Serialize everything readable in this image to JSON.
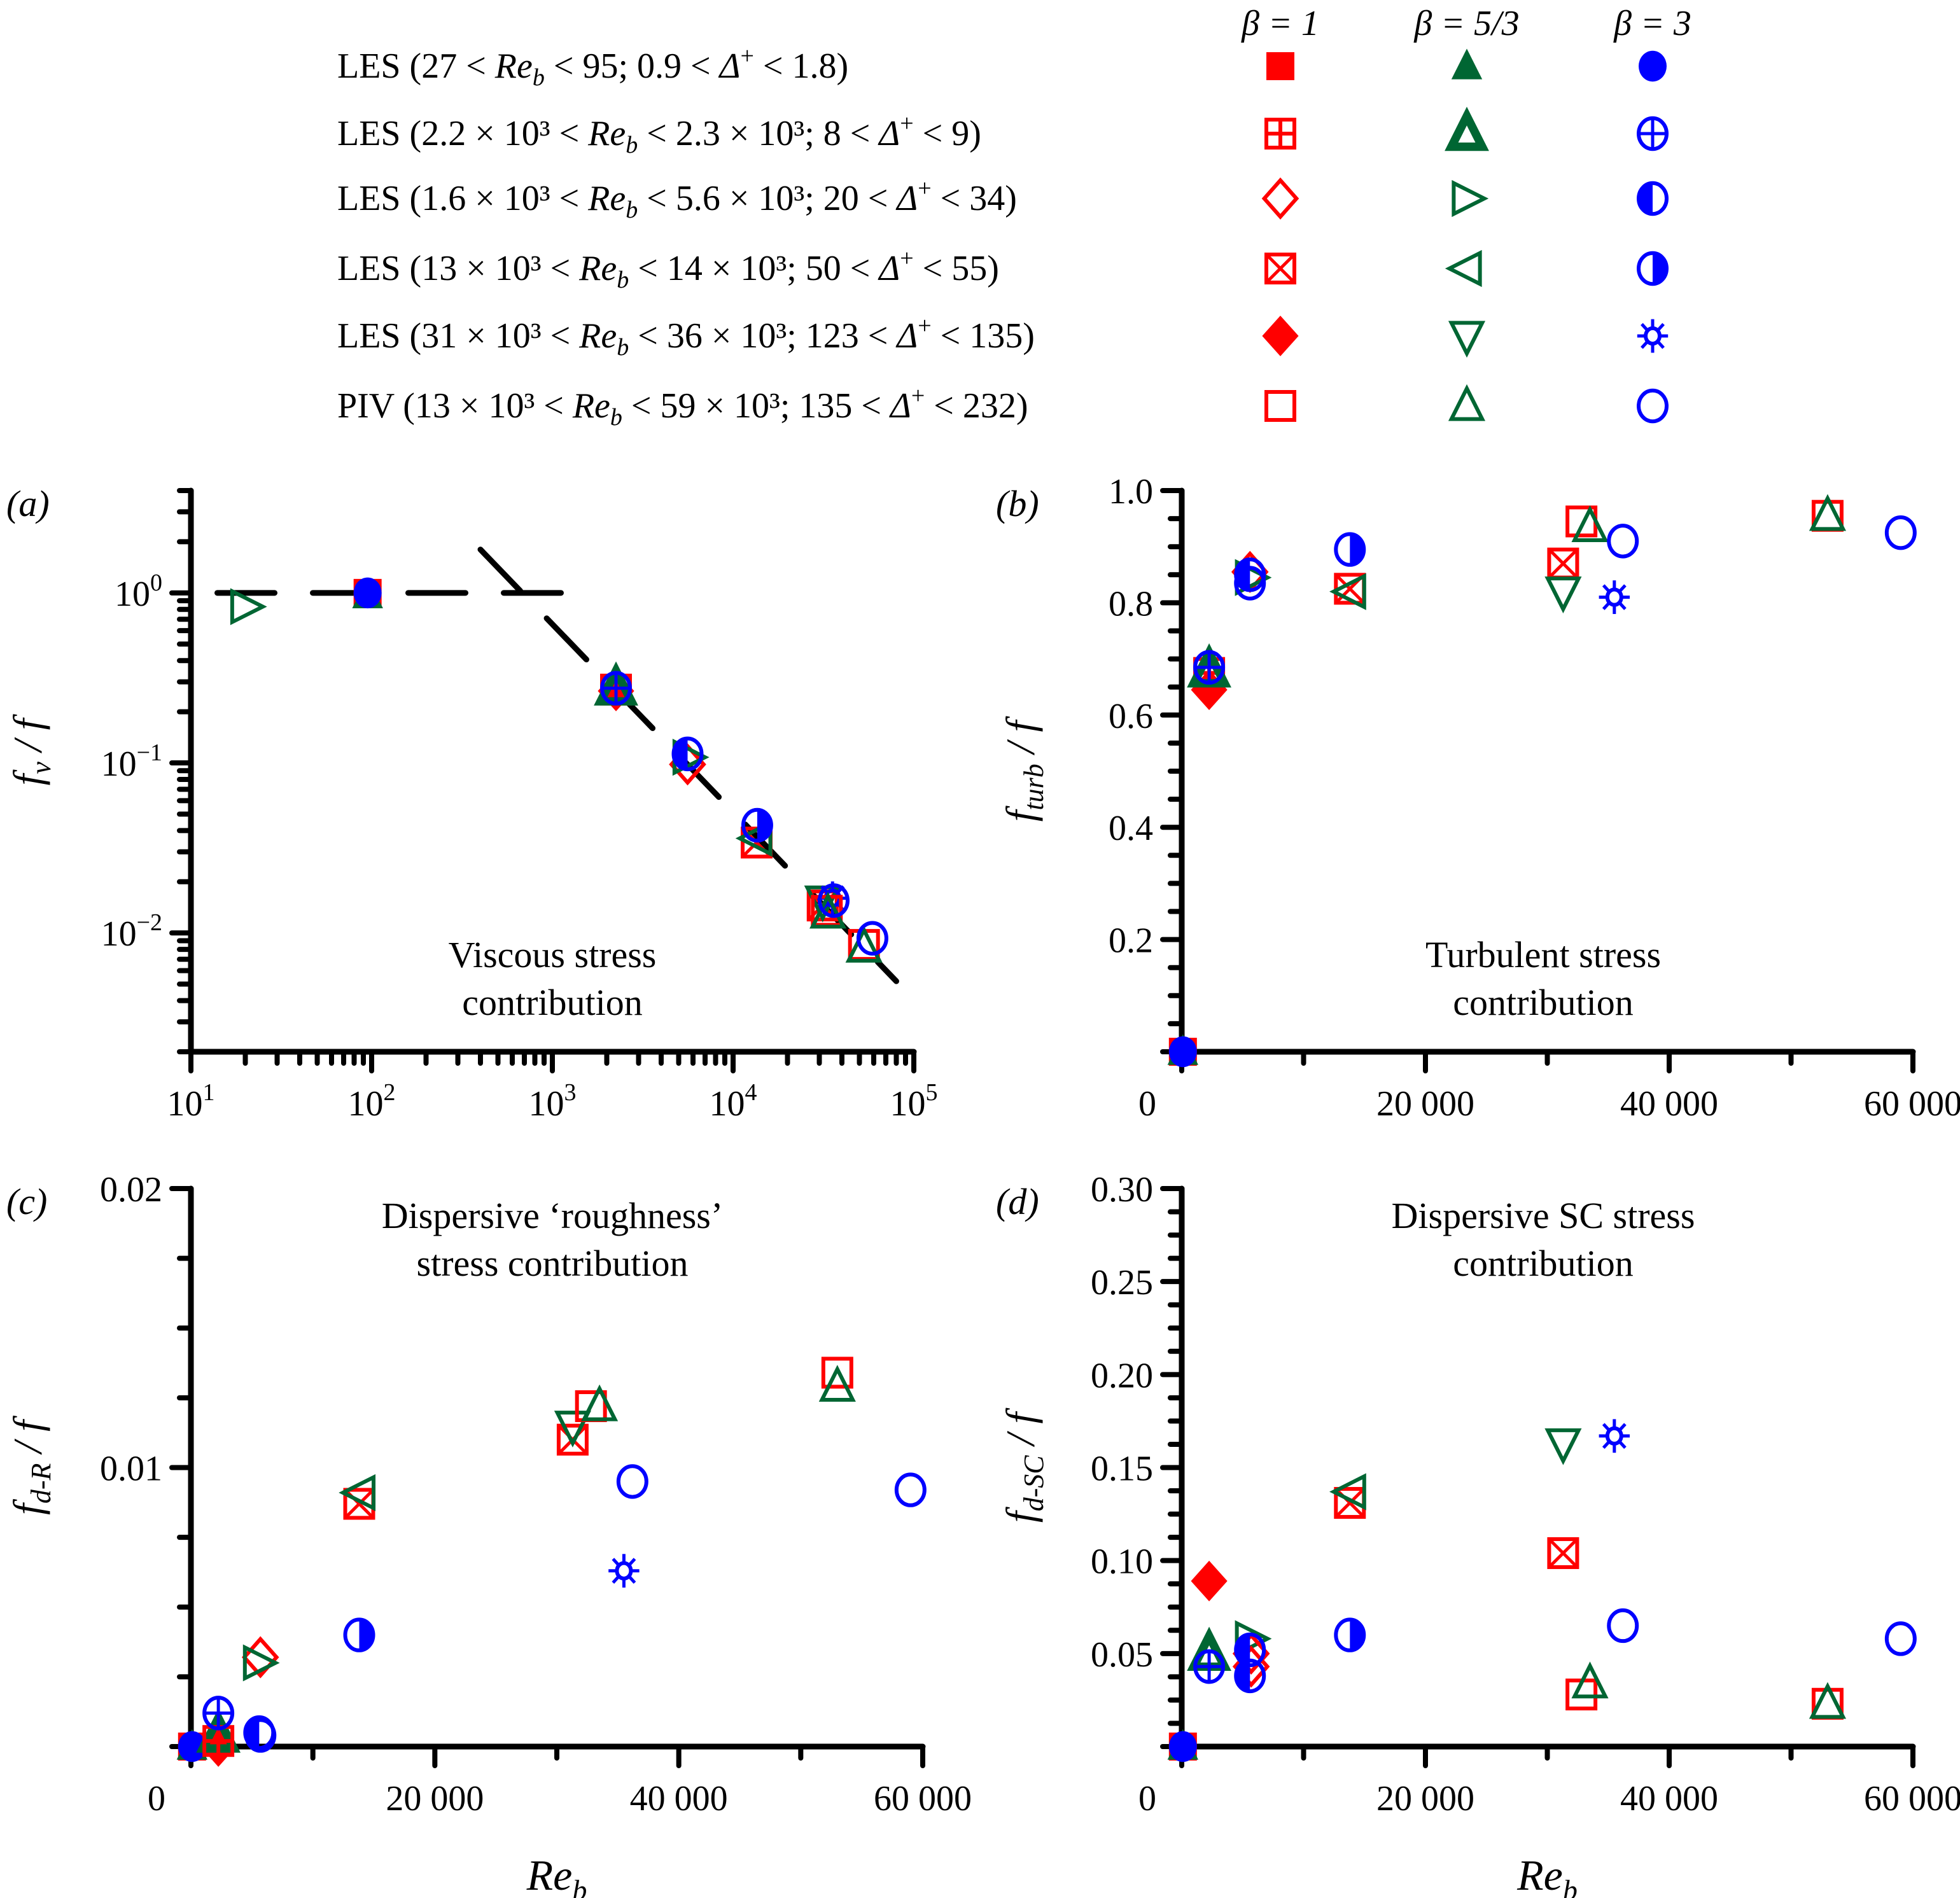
{
  "colors": {
    "beta1": "#ff0000",
    "beta53": "#006633",
    "beta3": "#0000ff"
  },
  "legend": {
    "headers": [
      "β = 1",
      "β = 5/3",
      "β = 3"
    ],
    "rows": [
      {
        "label": "LES (27 < Re_b < 95; 0.9 < Δ⁺ < 1.8)",
        "prefix": "LES (27 < ",
        "mid": " < 95; 0.9 < ",
        "suffix": " < 1.8)",
        "symbols": [
          "filled-square",
          "filled-triangle",
          "filled-circle"
        ]
      },
      {
        "label": "LES (2.2 × 10³ < Re_b < 2.3 × 10³; 8 < Δ⁺ < 9)",
        "prefix": "LES (2.2 × 10³ < ",
        "mid": " < 2.3 × 10³; 8 < ",
        "suffix": " < 9)",
        "symbols": [
          "square-plus",
          "thick-triangle",
          "circle-plus"
        ]
      },
      {
        "label": "LES (1.6 × 10³ < Re_b < 5.6 × 10³; 20 < Δ⁺ < 34)",
        "prefix": "LES (1.6 × 10³ < ",
        "mid": " < 5.6 × 10³; 20 < ",
        "suffix": " < 34)",
        "symbols": [
          "open-diamond",
          "triangle-right",
          "circle-left-half"
        ]
      },
      {
        "label": "LES (13 × 10³ < Re_b < 14 × 10³; 50 < Δ⁺ < 55)",
        "prefix": "LES (13 × 10³ < ",
        "mid": " < 14 × 10³; 50 < ",
        "suffix": " < 55)",
        "symbols": [
          "square-x",
          "triangle-left",
          "circle-right-half"
        ]
      },
      {
        "label": "LES (31 × 10³ < Re_b < 36 × 10³; 123 < Δ⁺ < 135)",
        "prefix": "LES (31 × 10³ < ",
        "mid": " < 36 × 10³; 123 < ",
        "suffix": " < 135)",
        "symbols": [
          "filled-diamond",
          "triangle-down",
          "sun-star"
        ]
      },
      {
        "label": "PIV (13 × 10³ < Re_b < 59 × 10³; 135 < Δ⁺ < 232)",
        "prefix": "PIV (13 × 10³ < ",
        "mid": " < 59 × 10³; 135 < ",
        "suffix": " < 232)",
        "symbols": [
          "open-square",
          "open-triangle",
          "open-circle"
        ]
      }
    ],
    "re_label": "Re",
    "re_sub": "b",
    "delta_label": "Δ",
    "delta_sup": "+"
  },
  "chart_data": [
    {
      "id": "a",
      "panel_label": "(a)",
      "type": "scatter",
      "yscale": "log",
      "xscale": "log",
      "title": "Viscous stress contribution",
      "title_lines": [
        "Viscous stress",
        "contribution"
      ],
      "ylabel": "f_v / f",
      "xlabel": "",
      "xlim": [
        10,
        100000
      ],
      "ylim": [
        0.002,
        4
      ],
      "xticks": [
        {
          "v": 10,
          "base": "10",
          "exp": "1"
        },
        {
          "v": 100,
          "base": "10",
          "exp": "2"
        },
        {
          "v": 1000,
          "base": "10",
          "exp": "3"
        },
        {
          "v": 10000,
          "base": "10",
          "exp": "4"
        },
        {
          "v": 100000,
          "base": "10",
          "exp": "5"
        }
      ],
      "yticks": [
        {
          "v": 1,
          "base": "10",
          "exp": "0"
        },
        {
          "v": 0.1,
          "base": "10",
          "exp": "−1"
        },
        {
          "v": 0.01,
          "base": "10",
          "exp": "−2"
        }
      ],
      "lines": [
        {
          "name": "laminar-level",
          "points": [
            [
              14,
              1.0
            ],
            [
              1200,
              1.0
            ]
          ]
        },
        {
          "name": "power-law-fit",
          "points": [
            [
              400,
              1.8
            ],
            [
              80000,
              0.0052
            ]
          ]
        }
      ],
      "points": [
        {
          "sym": "filled-square",
          "c": "beta1",
          "x": 95,
          "y": 1.0
        },
        {
          "sym": "filled-triangle",
          "c": "beta53",
          "x": 95,
          "y": 0.97
        },
        {
          "sym": "filled-circle",
          "c": "beta3",
          "x": 95,
          "y": 1.0
        },
        {
          "sym": "triangle-right",
          "c": "beta53",
          "x": 20,
          "y": 0.83
        },
        {
          "sym": "filled-diamond",
          "c": "beta1",
          "x": 2250,
          "y": 0.265
        },
        {
          "sym": "square-plus",
          "c": "beta1",
          "x": 2250,
          "y": 0.27
        },
        {
          "sym": "thick-triangle",
          "c": "beta53",
          "x": 2250,
          "y": 0.275
        },
        {
          "sym": "circle-plus",
          "c": "beta3",
          "x": 2250,
          "y": 0.275
        },
        {
          "sym": "open-diamond",
          "c": "beta1",
          "x": 5600,
          "y": 0.098
        },
        {
          "sym": "triangle-right",
          "c": "beta53",
          "x": 5600,
          "y": 0.108
        },
        {
          "sym": "circle-left-half",
          "c": "beta3",
          "x": 5600,
          "y": 0.113
        },
        {
          "sym": "square-x",
          "c": "beta1",
          "x": 13500,
          "y": 0.034
        },
        {
          "sym": "triangle-left",
          "c": "beta53",
          "x": 13600,
          "y": 0.036
        },
        {
          "sym": "circle-right-half",
          "c": "beta3",
          "x": 13600,
          "y": 0.043
        },
        {
          "sym": "square-x",
          "c": "beta1",
          "x": 31300,
          "y": 0.0145
        },
        {
          "sym": "triangle-down",
          "c": "beta53",
          "x": 31300,
          "y": 0.0155
        },
        {
          "sym": "sun-star",
          "c": "beta3",
          "x": 35500,
          "y": 0.016
        },
        {
          "sym": "open-square",
          "c": "beta1",
          "x": 33000,
          "y": 0.0135
        },
        {
          "sym": "open-triangle",
          "c": "beta53",
          "x": 33500,
          "y": 0.013
        },
        {
          "sym": "open-circle",
          "c": "beta3",
          "x": 36000,
          "y": 0.0155
        },
        {
          "sym": "open-square",
          "c": "beta1",
          "x": 53000,
          "y": 0.0085
        },
        {
          "sym": "open-triangle",
          "c": "beta53",
          "x": 53000,
          "y": 0.0082
        },
        {
          "sym": "open-circle",
          "c": "beta3",
          "x": 59000,
          "y": 0.0093
        }
      ]
    },
    {
      "id": "b",
      "panel_label": "(b)",
      "type": "scatter",
      "yscale": "linear",
      "xscale": "linear",
      "title": "Turbulent stress contribution",
      "title_lines": [
        "Turbulent stress",
        "contribution"
      ],
      "ylabel": "f_turb / f",
      "xlabel": "",
      "xlim": [
        0,
        60000
      ],
      "ylim": [
        0,
        1.0
      ],
      "xticks": [
        {
          "v": 0,
          "label": "0"
        },
        {
          "v": 20000,
          "label": "20 000"
        },
        {
          "v": 40000,
          "label": "40 000"
        },
        {
          "v": 60000,
          "label": "60 000"
        }
      ],
      "yticks": [
        {
          "v": 0.2,
          "label": "0.2"
        },
        {
          "v": 0.4,
          "label": "0.4"
        },
        {
          "v": 0.6,
          "label": "0.6"
        },
        {
          "v": 0.8,
          "label": "0.8"
        },
        {
          "v": 1.0,
          "label": "1.0"
        }
      ],
      "points": [
        {
          "sym": "filled-square",
          "c": "beta1",
          "x": 95,
          "y": 0.0
        },
        {
          "sym": "filled-triangle",
          "c": "beta53",
          "x": 95,
          "y": 0.0
        },
        {
          "sym": "filled-circle",
          "c": "beta3",
          "x": 95,
          "y": 0.0
        },
        {
          "sym": "filled-diamond",
          "c": "beta1",
          "x": 2250,
          "y": 0.645
        },
        {
          "sym": "square-plus",
          "c": "beta1",
          "x": 2250,
          "y": 0.675
        },
        {
          "sym": "thick-triangle",
          "c": "beta53",
          "x": 2250,
          "y": 0.68
        },
        {
          "sym": "circle-plus",
          "c": "beta3",
          "x": 2250,
          "y": 0.685
        },
        {
          "sym": "open-diamond",
          "c": "beta1",
          "x": 5600,
          "y": 0.855
        },
        {
          "sym": "triangle-right",
          "c": "beta53",
          "x": 5600,
          "y": 0.845
        },
        {
          "sym": "circle-left-half",
          "c": "beta3",
          "x": 5600,
          "y": 0.85
        },
        {
          "sym": "open-circle",
          "c": "beta3",
          "x": 5600,
          "y": 0.835
        },
        {
          "sym": "circle-right-half",
          "c": "beta3",
          "x": 13800,
          "y": 0.895
        },
        {
          "sym": "square-x",
          "c": "beta1",
          "x": 13800,
          "y": 0.825
        },
        {
          "sym": "triangle-left",
          "c": "beta53",
          "x": 13900,
          "y": 0.82
        },
        {
          "sym": "square-x",
          "c": "beta1",
          "x": 31300,
          "y": 0.87
        },
        {
          "sym": "triangle-down",
          "c": "beta53",
          "x": 31300,
          "y": 0.82
        },
        {
          "sym": "sun-star",
          "c": "beta3",
          "x": 35500,
          "y": 0.81
        },
        {
          "sym": "open-square",
          "c": "beta1",
          "x": 32800,
          "y": 0.945
        },
        {
          "sym": "open-triangle",
          "c": "beta53",
          "x": 33500,
          "y": 0.935
        },
        {
          "sym": "open-circle",
          "c": "beta3",
          "x": 36200,
          "y": 0.91
        },
        {
          "sym": "open-square",
          "c": "beta1",
          "x": 53000,
          "y": 0.955
        },
        {
          "sym": "open-triangle",
          "c": "beta53",
          "x": 53000,
          "y": 0.955
        },
        {
          "sym": "open-circle",
          "c": "beta3",
          "x": 59000,
          "y": 0.925
        }
      ]
    },
    {
      "id": "c",
      "panel_label": "(c)",
      "type": "scatter",
      "yscale": "linear",
      "xscale": "linear",
      "title": "Dispersive ‘roughness’ stress contribution",
      "title_lines": [
        "Dispersive ‘roughness’",
        "stress contribution"
      ],
      "ylabel": "f_d-R / f",
      "xlabel": "Re_b",
      "xlim": [
        0,
        60000
      ],
      "ylim": [
        0,
        0.02
      ],
      "xticks": [
        {
          "v": 0,
          "label": "0"
        },
        {
          "v": 20000,
          "label": "20 000"
        },
        {
          "v": 40000,
          "label": "40 000"
        },
        {
          "v": 60000,
          "label": "60 000"
        }
      ],
      "yticks": [
        {
          "v": 0.01,
          "label": "0.01"
        },
        {
          "v": 0.02,
          "label": "0.02"
        }
      ],
      "points": [
        {
          "sym": "filled-square",
          "c": "beta1",
          "x": 95,
          "y": 0.0
        },
        {
          "sym": "filled-triangle",
          "c": "beta53",
          "x": 95,
          "y": 0.0
        },
        {
          "sym": "filled-circle",
          "c": "beta3",
          "x": 95,
          "y": 0.0
        },
        {
          "sym": "filled-diamond",
          "c": "beta1",
          "x": 2250,
          "y": 0.0
        },
        {
          "sym": "thick-triangle",
          "c": "beta53",
          "x": 2250,
          "y": 0.0004
        },
        {
          "sym": "square-plus",
          "c": "beta1",
          "x": 2250,
          "y": 0.0002
        },
        {
          "sym": "circle-plus",
          "c": "beta3",
          "x": 2250,
          "y": 0.0012
        },
        {
          "sym": "open-diamond",
          "c": "beta1",
          "x": 5700,
          "y": 0.0032
        },
        {
          "sym": "triangle-right",
          "c": "beta53",
          "x": 5500,
          "y": 0.003
        },
        {
          "sym": "circle-left-half",
          "c": "beta3",
          "x": 5600,
          "y": 0.0005
        },
        {
          "sym": "open-circle",
          "c": "beta3",
          "x": 5700,
          "y": 0.0004
        },
        {
          "sym": "circle-right-half",
          "c": "beta3",
          "x": 13800,
          "y": 0.004
        },
        {
          "sym": "square-x",
          "c": "beta1",
          "x": 13800,
          "y": 0.0087
        },
        {
          "sym": "triangle-left",
          "c": "beta53",
          "x": 13900,
          "y": 0.0091
        },
        {
          "sym": "square-x",
          "c": "beta1",
          "x": 31300,
          "y": 0.011
        },
        {
          "sym": "triangle-down",
          "c": "beta53",
          "x": 31300,
          "y": 0.0115
        },
        {
          "sym": "sun-star",
          "c": "beta3",
          "x": 35500,
          "y": 0.0063
        },
        {
          "sym": "open-square",
          "c": "beta1",
          "x": 32800,
          "y": 0.0122
        },
        {
          "sym": "open-triangle",
          "c": "beta53",
          "x": 33500,
          "y": 0.0122
        },
        {
          "sym": "open-circle",
          "c": "beta3",
          "x": 36200,
          "y": 0.0095
        },
        {
          "sym": "open-square",
          "c": "beta1",
          "x": 53000,
          "y": 0.0134
        },
        {
          "sym": "open-triangle",
          "c": "beta53",
          "x": 53000,
          "y": 0.0129
        },
        {
          "sym": "open-circle",
          "c": "beta3",
          "x": 59000,
          "y": 0.0092
        }
      ]
    },
    {
      "id": "d",
      "panel_label": "(d)",
      "type": "scatter",
      "yscale": "linear",
      "xscale": "linear",
      "title": "Dispersive SC stress contribution",
      "title_lines": [
        "Dispersive SC stress",
        "contribution"
      ],
      "ylabel": "f_d-SC / f",
      "xlabel": "Re_b",
      "xlim": [
        0,
        60000
      ],
      "ylim": [
        0,
        0.3
      ],
      "xticks": [
        {
          "v": 0,
          "label": "0"
        },
        {
          "v": 20000,
          "label": "20 000"
        },
        {
          "v": 40000,
          "label": "40 000"
        },
        {
          "v": 60000,
          "label": "60 000"
        }
      ],
      "yticks": [
        {
          "v": 0.05,
          "label": "0.05"
        },
        {
          "v": 0.1,
          "label": "0.10"
        },
        {
          "v": 0.15,
          "label": "0.15"
        },
        {
          "v": 0.2,
          "label": "0.20"
        },
        {
          "v": 0.25,
          "label": "0.25"
        },
        {
          "v": 0.3,
          "label": "0.30"
        }
      ],
      "points": [
        {
          "sym": "filled-square",
          "c": "beta1",
          "x": 95,
          "y": 0.0
        },
        {
          "sym": "filled-triangle",
          "c": "beta53",
          "x": 95,
          "y": 0.0
        },
        {
          "sym": "filled-circle",
          "c": "beta3",
          "x": 95,
          "y": 0.0
        },
        {
          "sym": "filled-diamond",
          "c": "beta1",
          "x": 2250,
          "y": 0.089
        },
        {
          "sym": "thick-triangle",
          "c": "beta53",
          "x": 2250,
          "y": 0.05
        },
        {
          "sym": "circle-plus",
          "c": "beta3",
          "x": 2250,
          "y": 0.043
        },
        {
          "sym": "triangle-right",
          "c": "beta53",
          "x": 5600,
          "y": 0.058
        },
        {
          "sym": "open-diamond",
          "c": "beta1",
          "x": 5700,
          "y": 0.05
        },
        {
          "sym": "open-diamond",
          "c": "beta1",
          "x": 5700,
          "y": 0.043
        },
        {
          "sym": "circle-left-half",
          "c": "beta3",
          "x": 5600,
          "y": 0.052
        },
        {
          "sym": "circle-left-half",
          "c": "beta3",
          "x": 5600,
          "y": 0.038
        },
        {
          "sym": "circle-right-half",
          "c": "beta3",
          "x": 13800,
          "y": 0.06
        },
        {
          "sym": "square-x",
          "c": "beta1",
          "x": 13800,
          "y": 0.131
        },
        {
          "sym": "triangle-left",
          "c": "beta53",
          "x": 13900,
          "y": 0.137
        },
        {
          "sym": "triangle-down",
          "c": "beta53",
          "x": 31300,
          "y": 0.163
        },
        {
          "sym": "sun-star",
          "c": "beta3",
          "x": 35500,
          "y": 0.167
        },
        {
          "sym": "square-x",
          "c": "beta1",
          "x": 31300,
          "y": 0.104
        },
        {
          "sym": "open-square",
          "c": "beta1",
          "x": 32800,
          "y": 0.028
        },
        {
          "sym": "open-triangle",
          "c": "beta53",
          "x": 33500,
          "y": 0.034
        },
        {
          "sym": "open-circle",
          "c": "beta3",
          "x": 36200,
          "y": 0.065
        },
        {
          "sym": "open-square",
          "c": "beta1",
          "x": 53000,
          "y": 0.023
        },
        {
          "sym": "open-triangle",
          "c": "beta53",
          "x": 53000,
          "y": 0.023
        },
        {
          "sym": "open-circle",
          "c": "beta3",
          "x": 59000,
          "y": 0.058
        }
      ]
    }
  ],
  "labels": {
    "a": {
      "ylabel_main": "f",
      "ylabel_sub": "v",
      "ylabel_tail": " / f"
    },
    "b": {
      "ylabel_main": "f",
      "ylabel_sub": "turb",
      "ylabel_tail": " / f"
    },
    "c": {
      "ylabel_main": "f",
      "ylabel_sub": "d-R",
      "ylabel_tail": " / f",
      "xlabel_main": "Re",
      "xlabel_sub": "b"
    },
    "d": {
      "ylabel_main": "f",
      "ylabel_sub": "d-SC",
      "ylabel_tail": " / f",
      "xlabel_main": "Re",
      "xlabel_sub": "b"
    }
  }
}
